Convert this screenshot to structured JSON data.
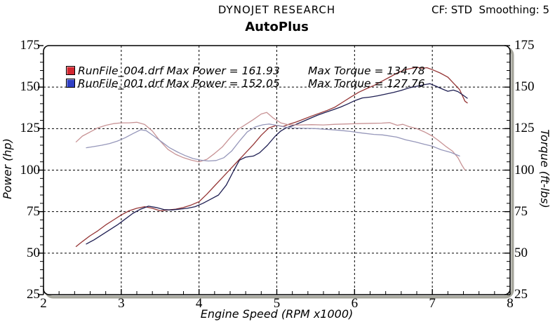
{
  "header": {
    "brand": "DYNOJET RESEARCH",
    "title": "AutoPlus",
    "settings": "CF: STD  Smoothing: 5"
  },
  "chart_data": {
    "type": "line",
    "title": "AutoPlus",
    "xlabel": "Engine Speed (RPM x1000)",
    "ylabel_left": "Power (hp)",
    "ylabel_right": "Torque (ft-lbs)",
    "xlim": [
      2,
      8
    ],
    "ylim": [
      25,
      175
    ],
    "x_major_ticks": [
      2,
      3,
      4,
      5,
      6,
      7,
      8
    ],
    "y_major_ticks": [
      25,
      50,
      75,
      100,
      125,
      150,
      175
    ],
    "x_minor_step": 0.2,
    "y_minor_step": 5,
    "grid": "dashed major gridlines, both axes",
    "legend_position": "top-left inside plot",
    "colors": {
      "frame": "#000000",
      "frame_shadow": "#a6a69c",
      "grid": "#000000",
      "power_004": "#963636",
      "power_001": "#1e1e52",
      "torque_004": "#c89395",
      "torque_001": "#9697ba",
      "legend_red": "#d22730",
      "legend_blue": "#2f3fc4"
    },
    "legend": [
      {
        "file": "RunFile_004.drf",
        "max_power": 161.93,
        "max_torque": 134.78,
        "power_label": "Max Power = 161.93",
        "torque_label": "Max Torque = 134.78",
        "marker_color": "#d22730"
      },
      {
        "file": "RunFile_001.drf",
        "max_power": 152.05,
        "max_torque": 127.76,
        "power_label": "Max Power = 152.05",
        "torque_label": "Max Torque = 127.76",
        "marker_color": "#2f3fc4"
      }
    ],
    "series": [
      {
        "id": "power-runfile-004",
        "name": "RunFile_004 Power (hp)",
        "color": "#963636",
        "points": [
          [
            2.42,
            54
          ],
          [
            2.5,
            57
          ],
          [
            2.6,
            60.5
          ],
          [
            2.7,
            63.5
          ],
          [
            2.8,
            67
          ],
          [
            2.9,
            70
          ],
          [
            3.0,
            73
          ],
          [
            3.1,
            75.5
          ],
          [
            3.2,
            77
          ],
          [
            3.3,
            78
          ],
          [
            3.4,
            77
          ],
          [
            3.5,
            75.5
          ],
          [
            3.6,
            76
          ],
          [
            3.7,
            76.5
          ],
          [
            3.8,
            77.5
          ],
          [
            3.9,
            79
          ],
          [
            4.0,
            81
          ],
          [
            4.1,
            85.5
          ],
          [
            4.2,
            90.5
          ],
          [
            4.3,
            95.5
          ],
          [
            4.4,
            100.5
          ],
          [
            4.5,
            105.5
          ],
          [
            4.6,
            110.5
          ],
          [
            4.7,
            115.5
          ],
          [
            4.8,
            121
          ],
          [
            4.9,
            125.5
          ],
          [
            5.0,
            127
          ],
          [
            5.08,
            126.3
          ],
          [
            5.15,
            127.5
          ],
          [
            5.25,
            129
          ],
          [
            5.35,
            130.8
          ],
          [
            5.45,
            132.6
          ],
          [
            5.55,
            134.3
          ],
          [
            5.65,
            136
          ],
          [
            5.75,
            138
          ],
          [
            5.85,
            141
          ],
          [
            5.95,
            144
          ],
          [
            6.05,
            146.8
          ],
          [
            6.15,
            149
          ],
          [
            6.25,
            151
          ],
          [
            6.35,
            153.5
          ],
          [
            6.45,
            156
          ],
          [
            6.55,
            158.5
          ],
          [
            6.65,
            160.5
          ],
          [
            6.75,
            161.5
          ],
          [
            6.8,
            161.93
          ],
          [
            6.87,
            161.3
          ],
          [
            6.93,
            161.7
          ],
          [
            7.0,
            160.5
          ],
          [
            7.1,
            158.5
          ],
          [
            7.2,
            156
          ],
          [
            7.28,
            152
          ],
          [
            7.35,
            148.5
          ],
          [
            7.42,
            141.5
          ],
          [
            7.45,
            140.5
          ]
        ]
      },
      {
        "id": "power-runfile-001",
        "name": "RunFile_001 Power (hp)",
        "color": "#1e1e52",
        "points": [
          [
            2.55,
            55.5
          ],
          [
            2.65,
            58
          ],
          [
            2.75,
            61
          ],
          [
            2.85,
            64
          ],
          [
            2.95,
            67
          ],
          [
            3.05,
            70.5
          ],
          [
            3.15,
            74
          ],
          [
            3.25,
            76.5
          ],
          [
            3.35,
            78.3
          ],
          [
            3.45,
            77.5
          ],
          [
            3.55,
            76.2
          ],
          [
            3.65,
            76
          ],
          [
            3.75,
            76.5
          ],
          [
            3.85,
            77
          ],
          [
            3.95,
            78
          ],
          [
            4.05,
            80
          ],
          [
            4.15,
            82.5
          ],
          [
            4.25,
            85
          ],
          [
            4.35,
            91
          ],
          [
            4.45,
            100
          ],
          [
            4.52,
            106
          ],
          [
            4.6,
            107.8
          ],
          [
            4.7,
            108.5
          ],
          [
            4.78,
            110.5
          ],
          [
            4.88,
            115
          ],
          [
            4.98,
            120.5
          ],
          [
            5.05,
            123.5
          ],
          [
            5.12,
            125.5
          ],
          [
            5.22,
            127
          ],
          [
            5.32,
            129
          ],
          [
            5.42,
            131
          ],
          [
            5.52,
            133
          ],
          [
            5.62,
            134.7
          ],
          [
            5.72,
            136.3
          ],
          [
            5.82,
            138
          ],
          [
            5.92,
            140
          ],
          [
            6.0,
            141.8
          ],
          [
            6.1,
            143.5
          ],
          [
            6.2,
            144
          ],
          [
            6.3,
            144.8
          ],
          [
            6.4,
            145.8
          ],
          [
            6.5,
            146.8
          ],
          [
            6.6,
            148
          ],
          [
            6.7,
            149.5
          ],
          [
            6.8,
            150.5
          ],
          [
            6.9,
            151.5
          ],
          [
            6.97,
            152.05
          ],
          [
            7.05,
            150.5
          ],
          [
            7.12,
            149
          ],
          [
            7.2,
            147.5
          ],
          [
            7.27,
            148.2
          ],
          [
            7.33,
            147.3
          ],
          [
            7.4,
            145
          ],
          [
            7.45,
            143.3
          ]
        ]
      },
      {
        "id": "torque-runfile-004",
        "name": "RunFile_004 Torque (ft-lbs)",
        "color": "#c89395",
        "points": [
          [
            2.42,
            117
          ],
          [
            2.5,
            120.5
          ],
          [
            2.6,
            123
          ],
          [
            2.7,
            125.5
          ],
          [
            2.8,
            127
          ],
          [
            2.9,
            128
          ],
          [
            3.0,
            128.5
          ],
          [
            3.1,
            128.5
          ],
          [
            3.2,
            128.8
          ],
          [
            3.3,
            127.5
          ],
          [
            3.4,
            123.5
          ],
          [
            3.5,
            117.5
          ],
          [
            3.6,
            112.5
          ],
          [
            3.7,
            109.5
          ],
          [
            3.8,
            107.5
          ],
          [
            3.9,
            106
          ],
          [
            4.0,
            105
          ],
          [
            4.1,
            106.5
          ],
          [
            4.2,
            110
          ],
          [
            4.3,
            114
          ],
          [
            4.4,
            119.5
          ],
          [
            4.5,
            124.5
          ],
          [
            4.6,
            127.5
          ],
          [
            4.7,
            130.5
          ],
          [
            4.8,
            133.8
          ],
          [
            4.87,
            134.78
          ],
          [
            4.95,
            131.5
          ],
          [
            5.05,
            128.5
          ],
          [
            5.15,
            127.3
          ],
          [
            5.3,
            127.2
          ],
          [
            5.45,
            127.4
          ],
          [
            5.6,
            127.2
          ],
          [
            5.75,
            127.6
          ],
          [
            5.9,
            127.8
          ],
          [
            6.05,
            128
          ],
          [
            6.2,
            128.2
          ],
          [
            6.35,
            128.3
          ],
          [
            6.45,
            128.6
          ],
          [
            6.55,
            127
          ],
          [
            6.62,
            127.6
          ],
          [
            6.7,
            126.2
          ],
          [
            6.8,
            125
          ],
          [
            6.9,
            123
          ],
          [
            7.0,
            120.5
          ],
          [
            7.08,
            117.8
          ],
          [
            7.17,
            114.4
          ],
          [
            7.26,
            111.4
          ],
          [
            7.33,
            107.5
          ],
          [
            7.38,
            103
          ],
          [
            7.42,
            100
          ]
        ]
      },
      {
        "id": "torque-runfile-001",
        "name": "RunFile_001 Torque (ft-lbs)",
        "color": "#9697ba",
        "points": [
          [
            2.55,
            113.5
          ],
          [
            2.65,
            114.2
          ],
          [
            2.75,
            115
          ],
          [
            2.85,
            116
          ],
          [
            2.95,
            117.5
          ],
          [
            3.05,
            119.5
          ],
          [
            3.15,
            122
          ],
          [
            3.25,
            124.3
          ],
          [
            3.32,
            123.8
          ],
          [
            3.42,
            120.5
          ],
          [
            3.52,
            117
          ],
          [
            3.62,
            113.5
          ],
          [
            3.72,
            111
          ],
          [
            3.82,
            108.8
          ],
          [
            3.92,
            107
          ],
          [
            4.02,
            106
          ],
          [
            4.12,
            105.5
          ],
          [
            4.22,
            105.8
          ],
          [
            4.32,
            107.5
          ],
          [
            4.42,
            111.5
          ],
          [
            4.52,
            117.5
          ],
          [
            4.62,
            123
          ],
          [
            4.72,
            126
          ],
          [
            4.82,
            127.3
          ],
          [
            4.9,
            127.76
          ],
          [
            5.0,
            127
          ],
          [
            5.1,
            126
          ],
          [
            5.2,
            125.4
          ],
          [
            5.35,
            125.2
          ],
          [
            5.5,
            125
          ],
          [
            5.65,
            124.5
          ],
          [
            5.8,
            124
          ],
          [
            5.95,
            123.3
          ],
          [
            6.1,
            122.3
          ],
          [
            6.25,
            121.5
          ],
          [
            6.36,
            121.2
          ],
          [
            6.54,
            119.9
          ],
          [
            6.66,
            118.2
          ],
          [
            6.78,
            117
          ],
          [
            6.9,
            115.5
          ],
          [
            7.0,
            114.4
          ],
          [
            7.11,
            112.3
          ],
          [
            7.24,
            110.6
          ],
          [
            7.35,
            108.5
          ]
        ]
      }
    ]
  }
}
